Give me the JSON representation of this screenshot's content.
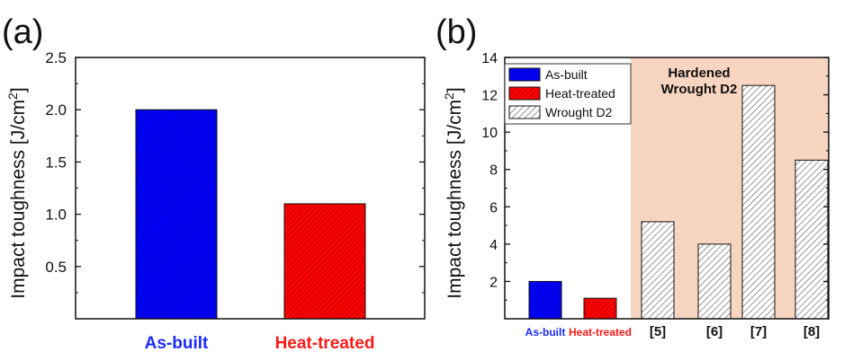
{
  "panels": {
    "a_label": "(a)",
    "b_label": "(b)"
  },
  "colors": {
    "as_built": "#0000ff",
    "heat_treated": "#ff0000",
    "wrought": "#ffffff",
    "hardened_region": "#f8d5c0",
    "as_built_label": "#1a2bff",
    "heat_treated_label": "#ff1a1a"
  },
  "chart_data": [
    {
      "type": "bar",
      "panel": "(a)",
      "ylabel": "Impact toughness [J/cm",
      "ylabel_sup": "2",
      "ylabel_end": "]",
      "ylim": [
        0,
        2.5
      ],
      "yticks": [
        "0.5",
        "1.0",
        "1.5",
        "2.0",
        "2.5"
      ],
      "categories": [
        "As-built",
        "Heat-treated"
      ],
      "values": [
        2.0,
        1.1
      ],
      "grid": false
    },
    {
      "type": "bar",
      "panel": "(b)",
      "ylabel": "Impact toughness [J/cm",
      "ylabel_sup": "2",
      "ylabel_end": "]",
      "ylim": [
        0,
        14
      ],
      "yticks": [
        "2",
        "4",
        "6",
        "8",
        "10",
        "12",
        "14"
      ],
      "categories": [
        "As-built",
        "Heat-treated",
        "[5]",
        "[6]",
        "[7]",
        "[8]"
      ],
      "values": [
        2.0,
        1.1,
        5.2,
        4.0,
        12.5,
        8.5
      ],
      "series_of_bar": [
        "As-built",
        "Heat-treated",
        "Wrought D2",
        "Wrought D2",
        "Wrought D2",
        "Wrought D2"
      ],
      "legend": {
        "placement": "top-left",
        "entries": [
          "As-built",
          "Heat-treated",
          "Wrought D2"
        ]
      },
      "annotation": {
        "line1": "Hardened",
        "line2": "Wrought D2"
      },
      "grid": false
    }
  ]
}
